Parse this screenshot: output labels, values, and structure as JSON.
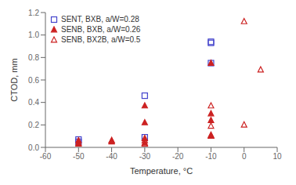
{
  "chart_data": {
    "type": "scatter",
    "xlabel": "Temperature, °C",
    "ylabel": "CTOD, mm",
    "xlim": [
      -60,
      10
    ],
    "ylim": [
      0,
      1.2
    ],
    "xticks": [
      -60,
      -50,
      -40,
      -30,
      -20,
      -10,
      0,
      10
    ],
    "yticks": [
      {
        "value": 0,
        "label": "0.0"
      },
      0.2,
      0.4,
      0.6,
      0.8,
      {
        "value": 1.0,
        "label": "1.0"
      },
      1.2
    ],
    "grid": false,
    "legend": "upper left",
    "series": [
      {
        "name": "SENT, BXB, a/W=0.28",
        "color": "#4444cc",
        "marker": "open-square",
        "x": [
          -50,
          -50,
          -30,
          -30,
          -10,
          -10,
          -10
        ],
        "values": [
          0.07,
          0.05,
          0.46,
          0.09,
          0.94,
          0.93,
          0.75
        ]
      },
      {
        "name": "SENB, BXB, a/W=0.26",
        "color": "#cc2222",
        "marker": "filled-triangle",
        "x": [
          -50,
          -50,
          -40,
          -40,
          -30,
          -30,
          -30,
          -30,
          -10,
          -10,
          -10,
          -10,
          -10
        ],
        "values": [
          0.06,
          0.03,
          0.06,
          0.05,
          0.37,
          0.22,
          0.08,
          0.04,
          0.75,
          0.3,
          0.24,
          0.1,
          0.1
        ]
      },
      {
        "name": "SENB, BX2B, a/W=0.5",
        "color": "#cc2222",
        "marker": "open-triangle",
        "x": [
          -50,
          -40,
          -30,
          -30,
          -10,
          -10,
          -10,
          -10,
          0,
          0,
          5
        ],
        "values": [
          0.04,
          0.06,
          0.06,
          0.03,
          0.37,
          0.19,
          0.11,
          0.1,
          1.12,
          0.2,
          0.69
        ]
      }
    ]
  }
}
